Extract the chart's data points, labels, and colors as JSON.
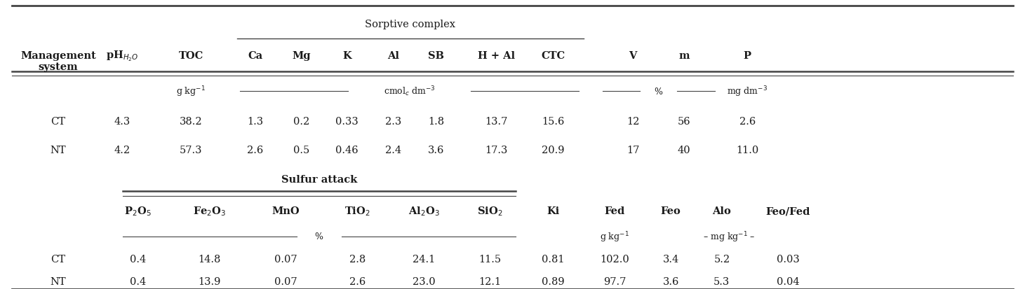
{
  "figsize": [
    14.61,
    4.14
  ],
  "dpi": 100,
  "bg_color": "#ffffff",
  "text_color": "#1a1a1a",
  "font_family": "DejaVu Serif",
  "top_header_text": "Sorptive complex",
  "sorptive_cols": [
    "Ca",
    "Mg",
    "K",
    "Al",
    "SB",
    "H + Al",
    "CTC"
  ],
  "right_cols_top": [
    "V",
    "m",
    "P"
  ],
  "data_rows_top": [
    [
      "CT",
      "4.3",
      "38.2",
      "1.3",
      "0.2",
      "0.33",
      "2.3",
      "1.8",
      "13.7",
      "15.6",
      "12",
      "56",
      "2.6"
    ],
    [
      "NT",
      "4.2",
      "57.3",
      "2.6",
      "0.5",
      "0.46",
      "2.4",
      "3.6",
      "17.3",
      "20.9",
      "17",
      "40",
      "11.0"
    ]
  ],
  "sulfur_header": "Sulfur attack",
  "sulfur_cols": [
    "P$_2$O$_5$",
    "Fe$_2$O$_3$",
    "MnO",
    "TiO$_2$",
    "Al$_2$O$_3$",
    "SiO$_2$"
  ],
  "right_cols2": [
    "Ki",
    "Fed",
    "Feo",
    "Alo",
    "Feo/Fed"
  ],
  "data_rows_bottom": [
    [
      "CT",
      "0.4",
      "14.8",
      "0.07",
      "2.8",
      "24.1",
      "11.5",
      "0.81",
      "102.0",
      "3.4",
      "5.2",
      "0.03"
    ],
    [
      "NT",
      "0.4",
      "13.9",
      "0.07",
      "2.6",
      "23.0",
      "12.1",
      "0.89",
      "97.7",
      "3.6",
      "5.3",
      "0.04"
    ]
  ]
}
